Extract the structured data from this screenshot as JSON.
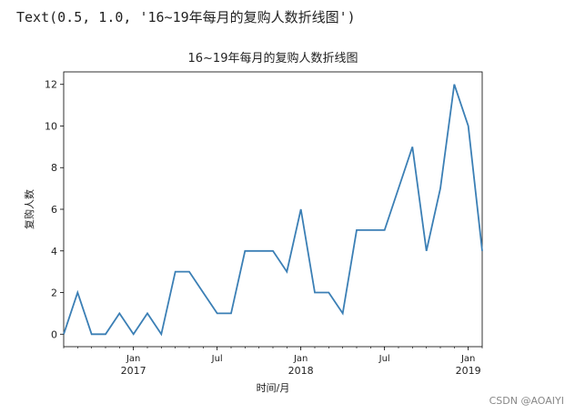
{
  "header": {
    "text": "Text(0.5, 1.0, '16~19年每月的复购人数折线图')"
  },
  "watermark": "CSDN @AOAIYI",
  "chart_data": {
    "type": "line",
    "title": "16~19年每月的复购人数折线图",
    "xlabel": "时间/月",
    "ylabel": "复购人数",
    "x": [
      "2016-08",
      "2016-09",
      "2016-10",
      "2016-11",
      "2016-12",
      "2017-01",
      "2017-02",
      "2017-03",
      "2017-04",
      "2017-05",
      "2017-06",
      "2017-07",
      "2017-08",
      "2017-09",
      "2017-10",
      "2017-11",
      "2017-12",
      "2018-01",
      "2018-02",
      "2018-03",
      "2018-04",
      "2018-05",
      "2018-06",
      "2018-07",
      "2018-08",
      "2018-09",
      "2018-10",
      "2018-11",
      "2018-12",
      "2019-01",
      "2019-02"
    ],
    "series": [
      {
        "name": "复购人数",
        "color": "#3b7fb5",
        "values": [
          0,
          2,
          0,
          0,
          1,
          0,
          1,
          0,
          3,
          3,
          2,
          1,
          1,
          4,
          4,
          4,
          3,
          6,
          2,
          2,
          1,
          5,
          5,
          5,
          7,
          9,
          4,
          7,
          12,
          10,
          4
        ]
      }
    ],
    "xlim": [
      "2016-08",
      "2019-02"
    ],
    "xticks": [
      {
        "value": "2017-01",
        "label": "Jan",
        "sublabel": "2017"
      },
      {
        "value": "2017-07",
        "label": "Jul"
      },
      {
        "value": "2018-01",
        "label": "Jan",
        "sublabel": "2018"
      },
      {
        "value": "2018-07",
        "label": "Jul"
      },
      {
        "value": "2019-01",
        "label": "Jan",
        "sublabel": "2019"
      }
    ],
    "ylim": [
      -0.6,
      12.6
    ],
    "yticks": [
      0,
      2,
      4,
      6,
      8,
      10,
      12
    ],
    "grid": false
  }
}
